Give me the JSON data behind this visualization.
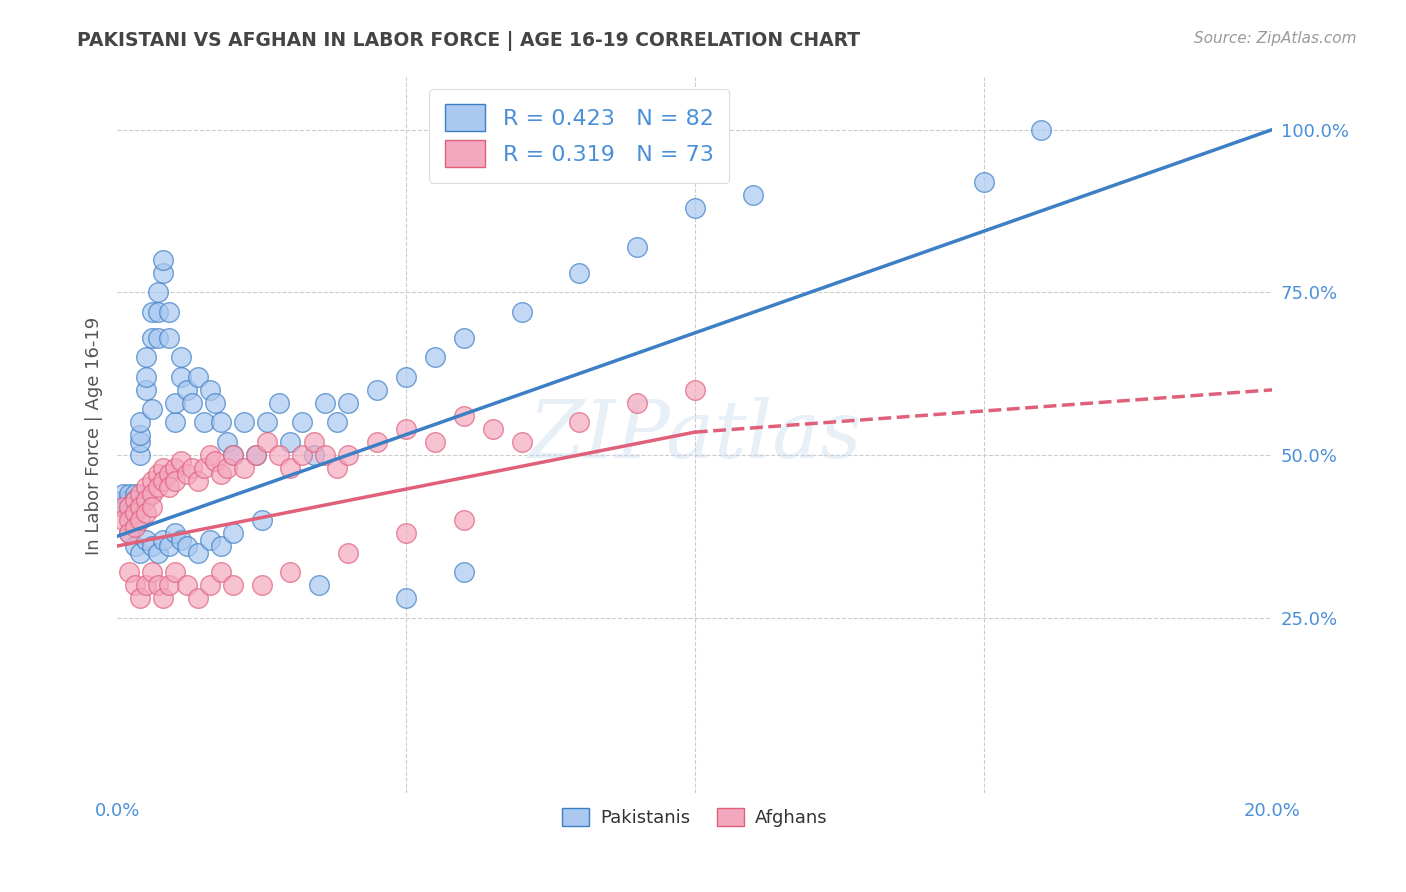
{
  "title": "PAKISTANI VS AFGHAN IN LABOR FORCE | AGE 16-19 CORRELATION CHART",
  "source": "Source: ZipAtlas.com",
  "ylabel": "In Labor Force | Age 16-19",
  "watermark": "ZIPatlas",
  "xlim": [
    0.0,
    0.2
  ],
  "ylim": [
    -0.02,
    1.08
  ],
  "xticks": [
    0.0,
    0.05,
    0.1,
    0.15,
    0.2
  ],
  "xticklabels": [
    "0.0%",
    "",
    "",
    "",
    "20.0%"
  ],
  "ytick_right_labels": [
    "",
    "25.0%",
    "50.0%",
    "75.0%",
    "100.0%"
  ],
  "ytick_right_values": [
    0.0,
    0.25,
    0.5,
    0.75,
    1.0
  ],
  "legend_entries": [
    {
      "label": "R = 0.423   N = 82",
      "color": "#a8c8f8"
    },
    {
      "label": "R = 0.319   N = 73",
      "color": "#f8b4c8"
    }
  ],
  "title_color": "#444444",
  "grid_color": "#cccccc",
  "background_color": "#ffffff",
  "pakistani_color": "#aac8f0",
  "afghan_color": "#f4a8c0",
  "pakistani_line_color": "#3d7fc4",
  "afghan_line_color": "#e0607a",
  "pakistani_scatter": {
    "x": [
      0.001,
      0.001,
      0.001,
      0.002,
      0.002,
      0.002,
      0.002,
      0.003,
      0.003,
      0.003,
      0.003,
      0.003,
      0.004,
      0.004,
      0.004,
      0.004,
      0.005,
      0.005,
      0.005,
      0.006,
      0.006,
      0.006,
      0.007,
      0.007,
      0.007,
      0.008,
      0.008,
      0.009,
      0.009,
      0.01,
      0.01,
      0.011,
      0.011,
      0.012,
      0.013,
      0.014,
      0.015,
      0.016,
      0.017,
      0.018,
      0.019,
      0.02,
      0.022,
      0.024,
      0.026,
      0.028,
      0.03,
      0.032,
      0.034,
      0.036,
      0.038,
      0.04,
      0.045,
      0.05,
      0.055,
      0.06,
      0.07,
      0.08,
      0.09,
      0.1,
      0.11,
      0.15,
      0.16,
      0.002,
      0.003,
      0.004,
      0.005,
      0.006,
      0.007,
      0.008,
      0.009,
      0.01,
      0.011,
      0.012,
      0.014,
      0.016,
      0.018,
      0.02,
      0.025,
      0.035,
      0.05,
      0.06
    ],
    "y": [
      0.43,
      0.42,
      0.44,
      0.43,
      0.42,
      0.41,
      0.44,
      0.43,
      0.44,
      0.42,
      0.41,
      0.43,
      0.5,
      0.52,
      0.53,
      0.55,
      0.6,
      0.62,
      0.65,
      0.57,
      0.68,
      0.72,
      0.68,
      0.72,
      0.75,
      0.78,
      0.8,
      0.68,
      0.72,
      0.55,
      0.58,
      0.62,
      0.65,
      0.6,
      0.58,
      0.62,
      0.55,
      0.6,
      0.58,
      0.55,
      0.52,
      0.5,
      0.55,
      0.5,
      0.55,
      0.58,
      0.52,
      0.55,
      0.5,
      0.58,
      0.55,
      0.58,
      0.6,
      0.62,
      0.65,
      0.68,
      0.72,
      0.78,
      0.82,
      0.88,
      0.9,
      0.92,
      1.0,
      0.38,
      0.36,
      0.35,
      0.37,
      0.36,
      0.35,
      0.37,
      0.36,
      0.38,
      0.37,
      0.36,
      0.35,
      0.37,
      0.36,
      0.38,
      0.4,
      0.3,
      0.28,
      0.32
    ]
  },
  "afghan_scatter": {
    "x": [
      0.001,
      0.001,
      0.002,
      0.002,
      0.002,
      0.003,
      0.003,
      0.003,
      0.004,
      0.004,
      0.004,
      0.005,
      0.005,
      0.005,
      0.006,
      0.006,
      0.006,
      0.007,
      0.007,
      0.008,
      0.008,
      0.009,
      0.009,
      0.01,
      0.01,
      0.011,
      0.012,
      0.013,
      0.014,
      0.015,
      0.016,
      0.017,
      0.018,
      0.019,
      0.02,
      0.022,
      0.024,
      0.026,
      0.028,
      0.03,
      0.032,
      0.034,
      0.036,
      0.038,
      0.04,
      0.045,
      0.05,
      0.055,
      0.06,
      0.065,
      0.07,
      0.08,
      0.09,
      0.1,
      0.002,
      0.003,
      0.004,
      0.005,
      0.006,
      0.007,
      0.008,
      0.009,
      0.01,
      0.012,
      0.014,
      0.016,
      0.018,
      0.02,
      0.025,
      0.03,
      0.04,
      0.05,
      0.06
    ],
    "y": [
      0.42,
      0.4,
      0.42,
      0.4,
      0.38,
      0.43,
      0.41,
      0.39,
      0.44,
      0.42,
      0.4,
      0.45,
      0.43,
      0.41,
      0.46,
      0.44,
      0.42,
      0.47,
      0.45,
      0.48,
      0.46,
      0.47,
      0.45,
      0.48,
      0.46,
      0.49,
      0.47,
      0.48,
      0.46,
      0.48,
      0.5,
      0.49,
      0.47,
      0.48,
      0.5,
      0.48,
      0.5,
      0.52,
      0.5,
      0.48,
      0.5,
      0.52,
      0.5,
      0.48,
      0.5,
      0.52,
      0.54,
      0.52,
      0.56,
      0.54,
      0.52,
      0.55,
      0.58,
      0.6,
      0.32,
      0.3,
      0.28,
      0.3,
      0.32,
      0.3,
      0.28,
      0.3,
      0.32,
      0.3,
      0.28,
      0.3,
      0.32,
      0.3,
      0.3,
      0.32,
      0.35,
      0.38,
      0.4
    ]
  },
  "pakistani_line": {
    "x0": 0.0,
    "y0": 0.375,
    "x1": 0.2,
    "y1": 1.0
  },
  "afghan_line_solid": {
    "x0": 0.0,
    "y0": 0.36,
    "x1": 0.1,
    "y1": 0.535
  },
  "afghan_line_dashed": {
    "x0": 0.1,
    "y0": 0.535,
    "x1": 0.2,
    "y1": 0.6
  }
}
